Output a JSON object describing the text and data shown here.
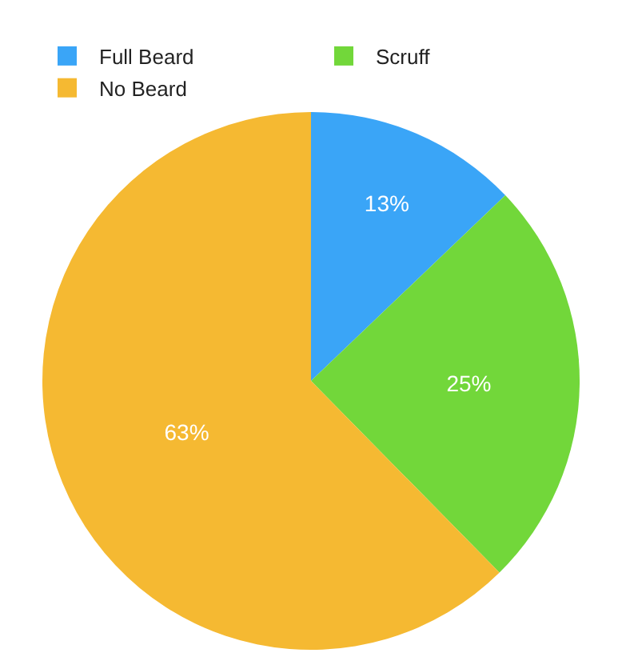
{
  "chart_data": {
    "type": "pie",
    "categories": [
      "Full Beard",
      "Scruff",
      "No Beard"
    ],
    "values": [
      13,
      25,
      63
    ],
    "value_labels": [
      "13%",
      "25%",
      "63%"
    ],
    "colors": [
      "#3aa5f7",
      "#72d73a",
      "#f5b932"
    ],
    "legend": "top"
  }
}
